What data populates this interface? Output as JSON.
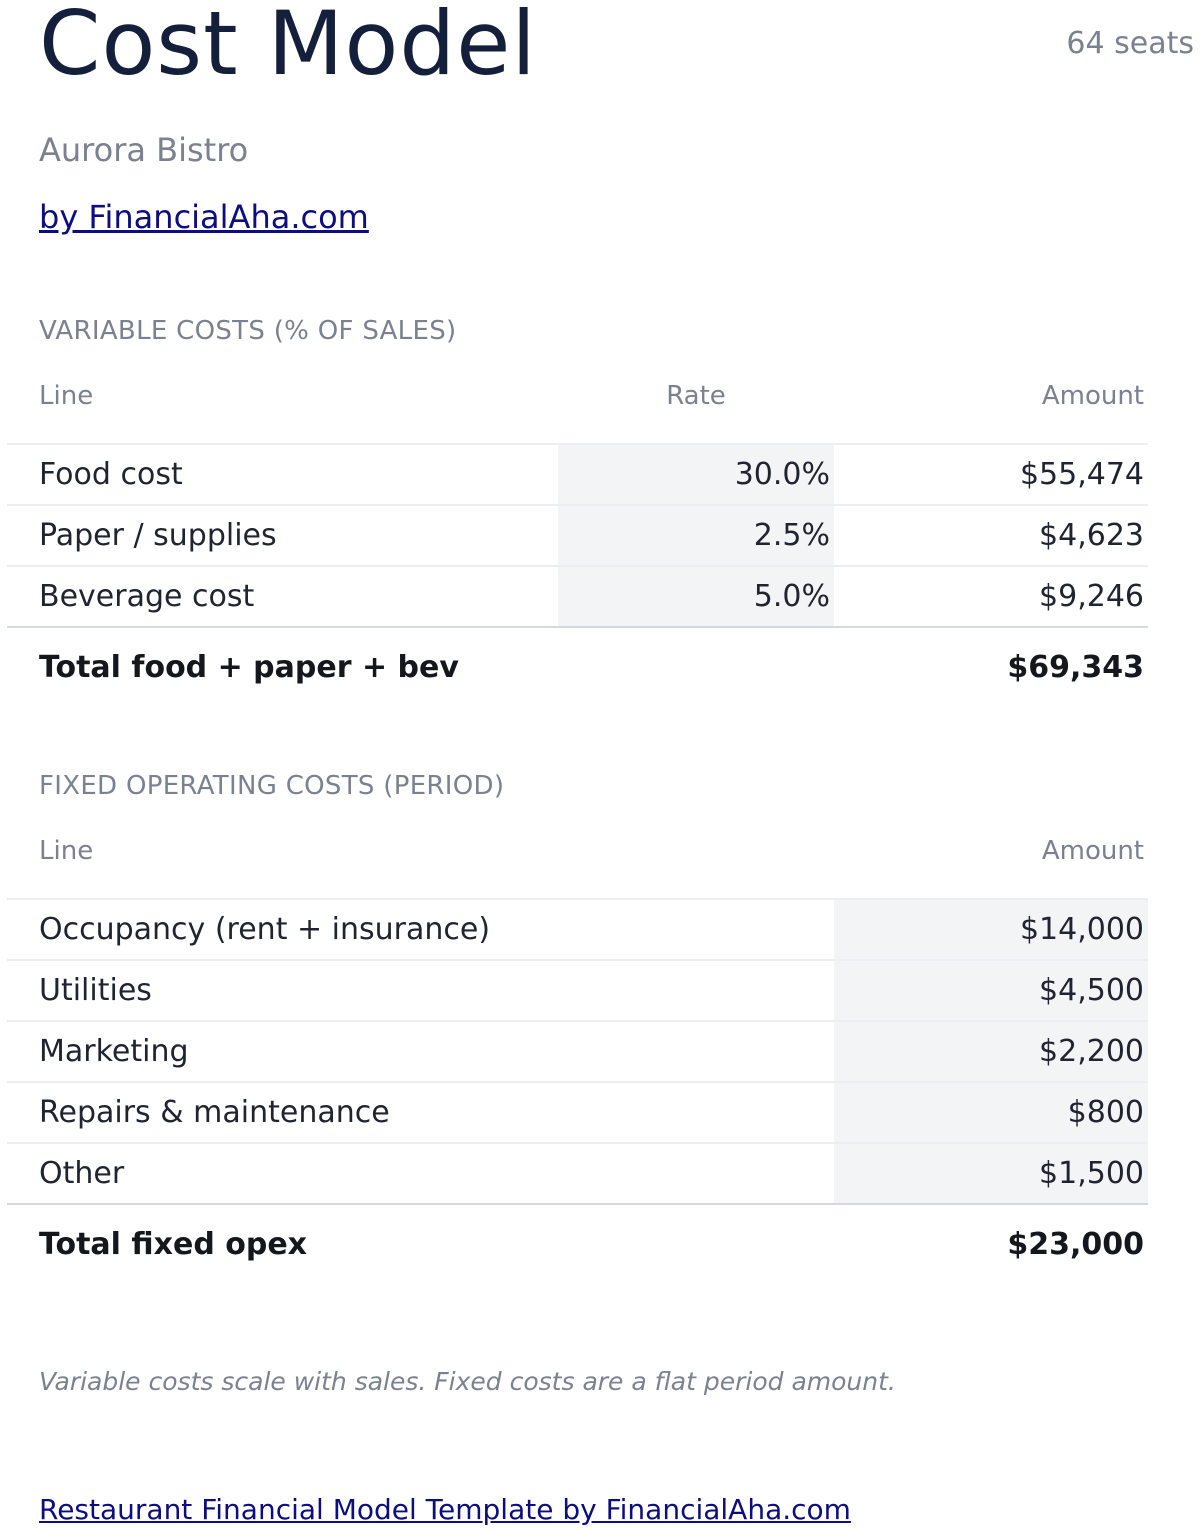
{
  "header": {
    "title": "Cost Model",
    "seats": "64 seats",
    "subtitle": "Aurora Bistro",
    "byline": "by FinancialAha.com"
  },
  "variable": {
    "label": "VARIABLE COSTS (% OF SALES)",
    "columns": {
      "line": "Line",
      "rate": "Rate",
      "amount": "Amount"
    },
    "rows": [
      {
        "line": "Food cost",
        "rate": "30.0%",
        "amount": "$55,474"
      },
      {
        "line": "Paper / supplies",
        "rate": "2.5%",
        "amount": "$4,623"
      },
      {
        "line": "Beverage cost",
        "rate": "5.0%",
        "amount": "$9,246"
      }
    ],
    "total": {
      "line": "Total food + paper + bev",
      "amount": "$69,343"
    }
  },
  "fixed": {
    "label": "FIXED OPERATING COSTS (PERIOD)",
    "columns": {
      "line": "Line",
      "amount": "Amount"
    },
    "rows": [
      {
        "line": "Occupancy (rent + insurance)",
        "amount": "$14,000"
      },
      {
        "line": "Utilities",
        "amount": "$4,500"
      },
      {
        "line": "Marketing",
        "amount": "$2,200"
      },
      {
        "line": "Repairs & maintenance",
        "amount": "$800"
      },
      {
        "line": "Other",
        "amount": "$1,500"
      }
    ],
    "total": {
      "line": "Total fixed opex",
      "amount": "$23,000"
    }
  },
  "note": "Variable costs scale with sales. Fixed costs are a flat period amount.",
  "footer": {
    "link": "Restaurant Financial Model Template by FinancialAha.com"
  },
  "colors": {
    "title": "#131f3b",
    "muted": "#7b8190",
    "link": "#0d0d80",
    "input_shade": "#f3f4f6"
  }
}
